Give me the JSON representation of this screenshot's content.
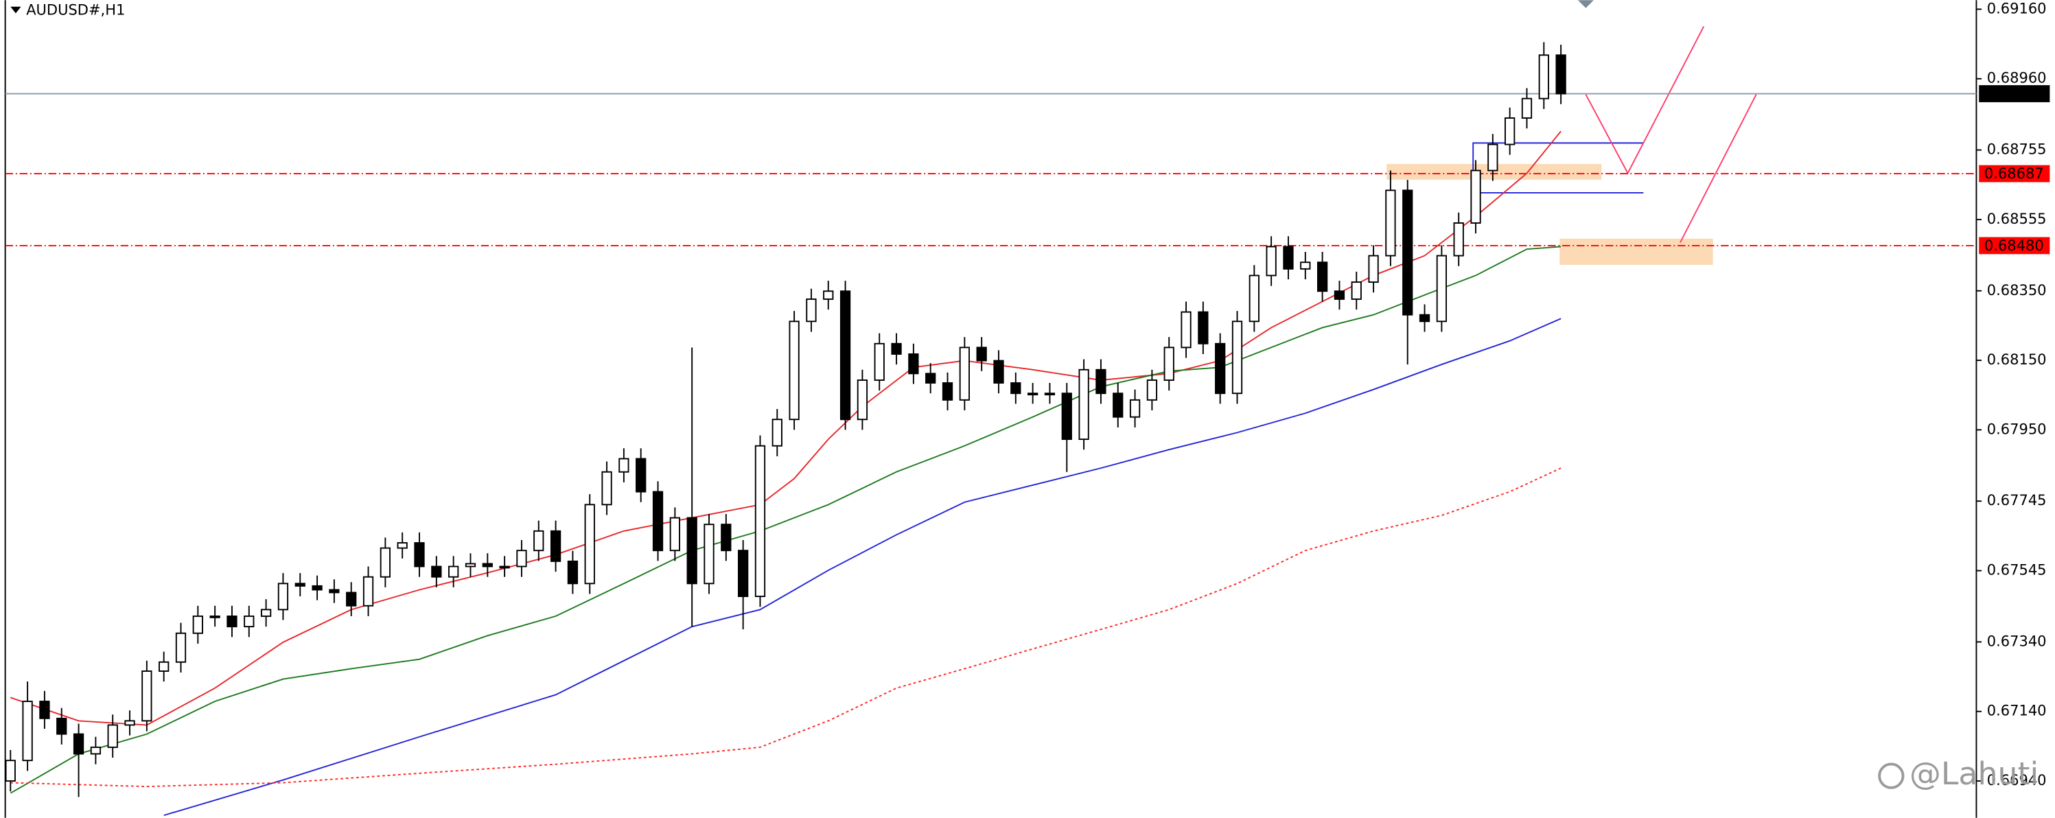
{
  "chart_data": {
    "type": "candlestick",
    "title": "AUDUSD#,H1",
    "watermark": "@Lahuti",
    "ylim": [
      0.66834,
      0.69186
    ],
    "yticks": [
      {
        "value": 0.6916,
        "label": "0.69160"
      },
      {
        "value": 0.6896,
        "label": "0.68960"
      },
      {
        "value": 0.68755,
        "label": "0.68755"
      },
      {
        "value": 0.68555,
        "label": "0.68555"
      },
      {
        "value": 0.6835,
        "label": "0.68350"
      },
      {
        "value": 0.6815,
        "label": "0.68150"
      },
      {
        "value": 0.6795,
        "label": "0.67950"
      },
      {
        "value": 0.67745,
        "label": "0.67745"
      },
      {
        "value": 0.67545,
        "label": "0.67545"
      },
      {
        "value": 0.6734,
        "label": "0.67340"
      },
      {
        "value": 0.6714,
        "label": "0.67140"
      },
      {
        "value": 0.6694,
        "label": "0.66940"
      }
    ],
    "price_line": {
      "value": 0.68917,
      "color": "#000000"
    },
    "levels": [
      {
        "value": 0.68687,
        "color": "#ff0000"
      },
      {
        "value": 0.6848,
        "label": "0.68480",
        "color": "#ff0000"
      }
    ],
    "candles": {
      "open": [
        0.6694,
        0.66999,
        0.67169,
        0.6712,
        0.67075,
        0.67018,
        0.67037,
        0.67101,
        0.67113,
        0.67256,
        0.67282,
        0.67365,
        0.67414,
        0.67414,
        0.67384,
        0.67414,
        0.67433,
        0.67508,
        0.67501,
        0.6749,
        0.67482,
        0.67444,
        0.67527,
        0.6761,
        0.67625,
        0.67557,
        0.67527,
        0.67557,
        0.67565,
        0.67557,
        0.67557,
        0.67603,
        0.67659,
        0.67572,
        0.67508,
        0.67735,
        0.67829,
        0.67867,
        0.67772,
        0.67603,
        0.67697,
        0.67508,
        0.67678,
        0.67603,
        0.67471,
        0.67904,
        0.6798,
        0.68262,
        0.68326,
        0.68349,
        0.6798,
        0.68093,
        0.68198,
        0.68168,
        0.68112,
        0.68085,
        0.68036,
        0.68187,
        0.68149,
        0.68085,
        0.68055,
        0.68055,
        0.68055,
        0.67923,
        0.68123,
        0.68055,
        0.67987,
        0.68036,
        0.68093,
        0.68187,
        0.68289,
        0.68198,
        0.68055,
        0.68262,
        0.68394,
        0.68477,
        0.68413,
        0.68432,
        0.68349,
        0.68326,
        0.68375,
        0.68451,
        0.68639,
        0.68281,
        0.68262,
        0.68451,
        0.68545,
        0.68696,
        0.68771,
        0.68847,
        0.68903,
        0.69028
      ],
      "high": [
        0.67029,
        0.67226,
        0.67199,
        0.6715,
        0.67105,
        0.67067,
        0.67131,
        0.67143,
        0.67286,
        0.67312,
        0.67395,
        0.67444,
        0.67444,
        0.67444,
        0.67444,
        0.67463,
        0.67538,
        0.67538,
        0.67531,
        0.6752,
        0.67512,
        0.67557,
        0.6764,
        0.67655,
        0.67655,
        0.67587,
        0.67587,
        0.67595,
        0.67595,
        0.67587,
        0.67633,
        0.67689,
        0.67689,
        0.67602,
        0.67765,
        0.67859,
        0.67897,
        0.67897,
        0.67802,
        0.67727,
        0.68187,
        0.67708,
        0.67708,
        0.67633,
        0.67934,
        0.6801,
        0.68292,
        0.68356,
        0.68379,
        0.68379,
        0.68123,
        0.68228,
        0.68228,
        0.68198,
        0.68142,
        0.68115,
        0.68217,
        0.68217,
        0.68179,
        0.68115,
        0.68085,
        0.68085,
        0.68085,
        0.68153,
        0.68153,
        0.68085,
        0.68066,
        0.68123,
        0.68217,
        0.68319,
        0.68319,
        0.68228,
        0.68292,
        0.68424,
        0.68507,
        0.68507,
        0.68462,
        0.68462,
        0.68379,
        0.68405,
        0.68481,
        0.68696,
        0.68669,
        0.68311,
        0.68481,
        0.68575,
        0.68726,
        0.68801,
        0.68877,
        0.68933,
        0.69065,
        0.69058
      ],
      "low": [
        0.6691,
        0.66969,
        0.6709,
        0.67045,
        0.66894,
        0.66988,
        0.67007,
        0.67071,
        0.67083,
        0.67226,
        0.67252,
        0.67335,
        0.67384,
        0.67354,
        0.67354,
        0.67384,
        0.67403,
        0.67471,
        0.6746,
        0.67452,
        0.67414,
        0.67414,
        0.67497,
        0.6758,
        0.67527,
        0.67497,
        0.67497,
        0.67527,
        0.67527,
        0.67527,
        0.67527,
        0.67573,
        0.67542,
        0.67478,
        0.67478,
        0.67705,
        0.67799,
        0.67742,
        0.67573,
        0.67573,
        0.67384,
        0.67478,
        0.67573,
        0.67376,
        0.67441,
        0.67874,
        0.6795,
        0.68232,
        0.68296,
        0.6795,
        0.6795,
        0.68063,
        0.68138,
        0.68082,
        0.68055,
        0.68006,
        0.68006,
        0.68119,
        0.68055,
        0.68025,
        0.68025,
        0.68025,
        0.67829,
        0.67893,
        0.68025,
        0.67957,
        0.67957,
        0.68006,
        0.68063,
        0.68157,
        0.68168,
        0.68025,
        0.68025,
        0.68232,
        0.68364,
        0.68383,
        0.68383,
        0.68319,
        0.68296,
        0.68296,
        0.68345,
        0.68421,
        0.68138,
        0.68232,
        0.68232,
        0.68421,
        0.68515,
        0.68666,
        0.68741,
        0.68817,
        0.68873,
        0.68887
      ],
      "close": [
        0.66999,
        0.67169,
        0.6712,
        0.67075,
        0.67018,
        0.67037,
        0.67101,
        0.67113,
        0.67256,
        0.67282,
        0.67365,
        0.67414,
        0.67414,
        0.67384,
        0.67414,
        0.67433,
        0.67508,
        0.67501,
        0.6749,
        0.67482,
        0.67444,
        0.67527,
        0.6761,
        0.67625,
        0.67557,
        0.67527,
        0.67557,
        0.67565,
        0.67557,
        0.67557,
        0.67603,
        0.67659,
        0.67572,
        0.67508,
        0.67735,
        0.67829,
        0.67867,
        0.67772,
        0.67603,
        0.67697,
        0.67508,
        0.67678,
        0.67603,
        0.67471,
        0.67904,
        0.6798,
        0.68262,
        0.68326,
        0.68349,
        0.6798,
        0.68093,
        0.68198,
        0.68168,
        0.68112,
        0.68085,
        0.68036,
        0.68187,
        0.68149,
        0.68085,
        0.68055,
        0.68055,
        0.68055,
        0.67923,
        0.68123,
        0.68055,
        0.67987,
        0.68036,
        0.68093,
        0.68187,
        0.68289,
        0.68198,
        0.68055,
        0.68262,
        0.68394,
        0.68477,
        0.68413,
        0.68432,
        0.68349,
        0.68326,
        0.68375,
        0.68451,
        0.68639,
        0.68281,
        0.68262,
        0.68451,
        0.68545,
        0.68696,
        0.68771,
        0.68847,
        0.68903,
        0.69028,
        0.68917
      ]
    },
    "series": [
      {
        "color": "#e8262a",
        "style": "solid",
        "x": [
          0,
          4,
          8,
          12,
          16,
          20,
          24,
          28,
          32,
          36,
          40,
          44,
          46,
          48,
          50,
          53,
          56,
          60,
          64,
          68,
          71,
          74,
          77,
          80,
          83,
          86,
          89,
          91
        ],
        "values": [
          0.6718,
          0.67113,
          0.67101,
          0.67207,
          0.67339,
          0.67433,
          0.6749,
          0.67539,
          0.67591,
          0.67659,
          0.67697,
          0.67735,
          0.6781,
          0.67923,
          0.68017,
          0.6813,
          0.68149,
          0.68123,
          0.68093,
          0.68112,
          0.68149,
          0.68244,
          0.68319,
          0.68394,
          0.68451,
          0.68564,
          0.68688,
          0.68809
        ]
      },
      {
        "color": "#1f7a1f",
        "style": "solid",
        "x": [
          0,
          4,
          8,
          12,
          16,
          20,
          24,
          28,
          32,
          36,
          40,
          44,
          48,
          52,
          56,
          60,
          64,
          68,
          71,
          74,
          77,
          80,
          83,
          86,
          89,
          91
        ],
        "values": [
          0.66905,
          0.67018,
          0.67075,
          0.67169,
          0.67233,
          0.67263,
          0.6729,
          0.67358,
          0.67414,
          0.67508,
          0.67603,
          0.67659,
          0.67735,
          0.67829,
          0.67904,
          0.67987,
          0.68074,
          0.68119,
          0.6813,
          0.68187,
          0.68244,
          0.68281,
          0.68338,
          0.68394,
          0.6847,
          0.68477
        ]
      },
      {
        "color": "#2424d8",
        "style": "solid",
        "x": [
          9,
          16,
          24,
          32,
          40,
          44,
          48,
          52,
          56,
          60,
          64,
          68,
          72,
          76,
          80,
          84,
          88,
          91
        ],
        "values": [
          0.66841,
          0.66943,
          0.67067,
          0.67188,
          0.67384,
          0.67433,
          0.67546,
          0.67648,
          0.67742,
          0.67791,
          0.6784,
          0.67893,
          0.67942,
          0.67998,
          0.68066,
          0.68138,
          0.68206,
          0.6827
        ]
      },
      {
        "color": "#ff2a2a",
        "style": "dotted",
        "x": [
          0,
          8,
          16,
          24,
          32,
          40,
          44,
          48,
          52,
          56,
          60,
          64,
          68,
          72,
          76,
          80,
          84,
          88,
          91
        ],
        "values": [
          0.66935,
          0.66924,
          0.66935,
          0.66962,
          0.66988,
          0.67018,
          0.67037,
          0.67113,
          0.67207,
          0.67263,
          0.6732,
          0.67376,
          0.67433,
          0.67508,
          0.67603,
          0.67659,
          0.67704,
          0.67772,
          0.6784
        ]
      }
    ]
  }
}
